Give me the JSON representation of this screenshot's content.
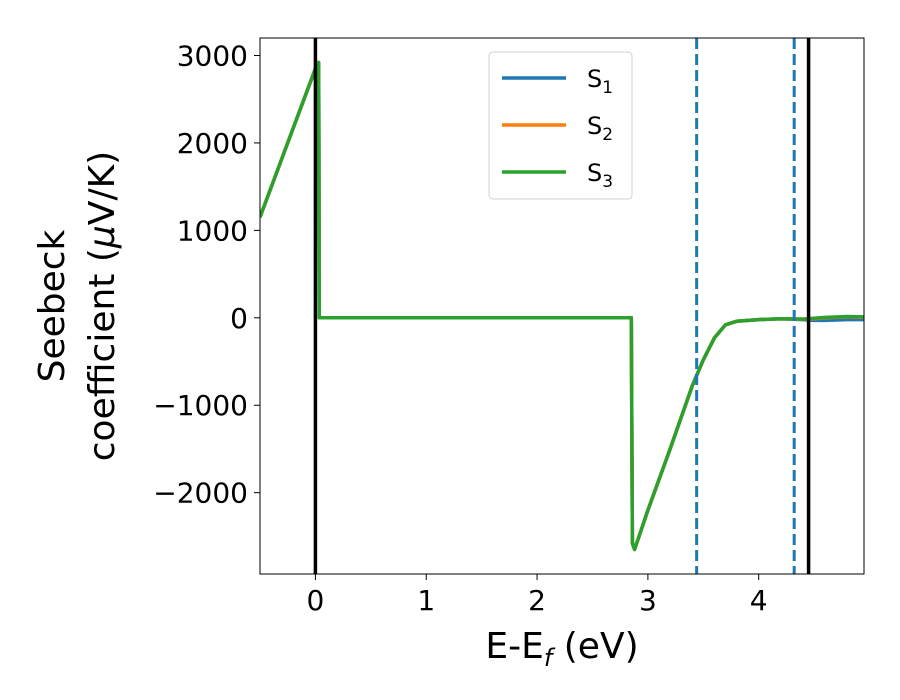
{
  "chart_data": {
    "type": "line",
    "title": "",
    "xlabel": {
      "main": "E-E",
      "sub": "f",
      "unit": " (eV)"
    },
    "ylabel": {
      "line1": "Seebeck",
      "line2_text": "coefficient  (",
      "line2_mu": "μ",
      "line2_unit": "V/K)"
    },
    "xlim": [
      -0.5,
      4.95
    ],
    "ylim": [
      -2930,
      3200
    ],
    "xticks": [
      0,
      1,
      2,
      3,
      4
    ],
    "xtick_labels": [
      "0",
      "1",
      "2",
      "3",
      "4"
    ],
    "yticks": [
      -2000,
      -1000,
      0,
      1000,
      2000,
      3000
    ],
    "ytick_labels": [
      "−2000",
      "−1000",
      "0",
      "1000",
      "2000",
      "3000"
    ],
    "grid": false,
    "legend": {
      "placement": "top-center"
    },
    "series": [
      {
        "name": "S",
        "sub": "1",
        "color": "#1f77b4",
        "x": [
          -0.5,
          0.0,
          0.03,
          0.035,
          1.0,
          2.0,
          2.85,
          2.86,
          2.88,
          3.0,
          3.2,
          3.4,
          3.5,
          3.6,
          3.7,
          3.8,
          4.0,
          4.2,
          4.4,
          4.5,
          4.6,
          4.8,
          4.95
        ],
        "y": [
          1150,
          2850,
          2920,
          0,
          0,
          0,
          0,
          -2580,
          -2650,
          -2200,
          -1500,
          -780,
          -480,
          -230,
          -80,
          -40,
          -20,
          -10,
          -20,
          -30,
          -30,
          -20,
          -20
        ]
      },
      {
        "name": "S",
        "sub": "2",
        "color": "#ff7f0e",
        "x": [
          -0.5,
          0.0,
          0.03,
          0.035,
          1.0,
          2.0,
          2.85,
          2.86,
          2.88,
          3.0,
          3.2,
          3.4,
          3.5,
          3.6,
          3.7,
          3.8,
          4.0,
          4.2,
          4.4,
          4.5,
          4.6,
          4.8,
          4.95
        ],
        "y": [
          1150,
          2850,
          2920,
          0,
          0,
          0,
          0,
          -2580,
          -2650,
          -2200,
          -1500,
          -780,
          -480,
          -230,
          -80,
          -40,
          -20,
          -10,
          -15,
          -10,
          0,
          10,
          5
        ]
      },
      {
        "name": "S",
        "sub": "3",
        "color": "#2ca02c",
        "x": [
          -0.5,
          0.0,
          0.03,
          0.035,
          1.0,
          2.0,
          2.85,
          2.86,
          2.88,
          3.0,
          3.2,
          3.4,
          3.5,
          3.6,
          3.7,
          3.8,
          4.0,
          4.2,
          4.4,
          4.5,
          4.6,
          4.8,
          4.95
        ],
        "y": [
          1150,
          2850,
          2920,
          0,
          0,
          0,
          0,
          -2580,
          -2650,
          -2200,
          -1500,
          -780,
          -480,
          -230,
          -80,
          -40,
          -20,
          -10,
          -15,
          -5,
          5,
          15,
          10
        ]
      }
    ],
    "vlines": [
      {
        "x": 0.0,
        "color": "#000000",
        "style": "solid"
      },
      {
        "x": 4.45,
        "color": "#000000",
        "style": "solid"
      },
      {
        "x": 3.44,
        "color": "#1f77b4",
        "style": "dashed"
      },
      {
        "x": 4.32,
        "color": "#1f77b4",
        "style": "dashed"
      }
    ]
  }
}
